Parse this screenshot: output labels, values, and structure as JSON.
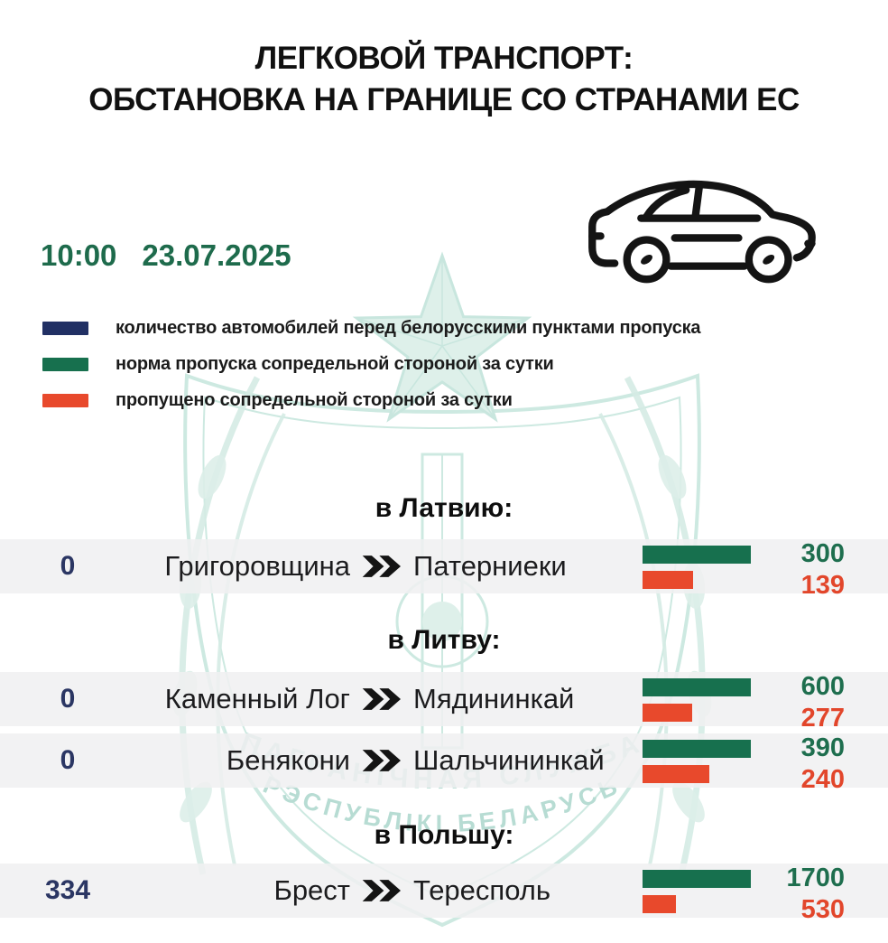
{
  "title_line1": "ЛЕГКОВОЙ ТРАНСПОРТ:",
  "title_line2": "ОБСТАНОВКА НА ГРАНИЦЕ СО СТРАНАМИ ЕС",
  "time": "10:00",
  "date": "23.07.2025",
  "legend": {
    "items": [
      {
        "label": "количество автомобилей перед белорусскими пунктами пропуска",
        "color": "#213064"
      },
      {
        "label": "норма пропуска сопредельной стороной за сутки",
        "color": "#17704E"
      },
      {
        "label": "пропущено сопредельной стороной за сутки",
        "color": "#E8492C"
      }
    ]
  },
  "watermark": {
    "arc_line1": "ПАГРАНІЧНАЯ СЛУЖБА",
    "arc_line2": "РЭСПУБЛІКІ БЕЛАРУСЬ"
  },
  "colors": {
    "navy": "#213064",
    "green_bar": "#17704E",
    "green_text": "#1E6B4C",
    "orange_bar": "#E8492C",
    "orange_text": "#E2462B",
    "row_band": "#F0F0F1",
    "watermark_teal": "#CDE9E1"
  },
  "chart_data": {
    "type": "bar",
    "title": "ЛЕГКОВОЙ ТРАНСПОРТ: ОБСТАНОВКА НА ГРАНИЦЕ СО СТРАНАМИ ЕС",
    "time": "10:00",
    "date": "23.07.2025",
    "legend": [
      "количество автомобилей перед белорусскими пунктами пропуска",
      "норма пропуска сопредельной стороной за сутки",
      "пропущено сопредельной стороной за сутки"
    ],
    "bar_scale_note": "green norm bar drawn full width; orange bar length proportional to passed/norm",
    "groups": [
      {
        "direction": "в Латвию:",
        "crossings": [
          {
            "queue": 0,
            "from": "Григоровщина",
            "to": "Патерниеки",
            "norm": 300,
            "passed": 139
          }
        ]
      },
      {
        "direction": "в Литву:",
        "crossings": [
          {
            "queue": 0,
            "from": "Каменный Лог",
            "to": "Мядининкай",
            "norm": 600,
            "passed": 277
          },
          {
            "queue": 0,
            "from": "Бенякони",
            "to": "Шальчининкай",
            "norm": 390,
            "passed": 240
          }
        ]
      },
      {
        "direction": "в Польшу:",
        "crossings": [
          {
            "queue": 334,
            "from": "Брест",
            "to": "Тересполь",
            "norm": 1700,
            "passed": 530
          }
        ]
      }
    ]
  }
}
